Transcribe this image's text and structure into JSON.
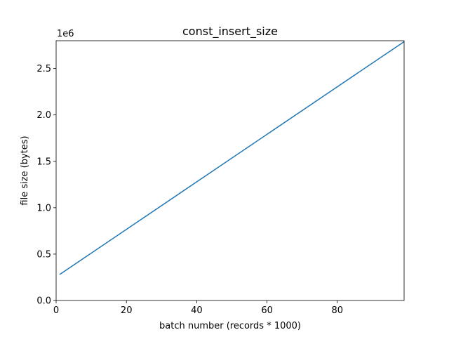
{
  "chart_data": {
    "type": "line",
    "title": "const_insert_size",
    "xlabel": "batch number (records * 1000)",
    "ylabel": "file size (bytes)",
    "y_offset_text": "1e6",
    "xlim": [
      0,
      99
    ],
    "ylim": [
      0,
      2.8
    ],
    "x_ticks": [
      0,
      20,
      40,
      60,
      80
    ],
    "x_tick_labels": [
      "0",
      "20",
      "40",
      "60",
      "80"
    ],
    "y_ticks": [
      0.0,
      0.5,
      1.0,
      1.5,
      2.0,
      2.5
    ],
    "y_tick_labels": [
      "0.0",
      "0.5",
      "1.0",
      "1.5",
      "2.0",
      "2.5"
    ],
    "grid": false,
    "series": [
      {
        "color": "#1f77b4",
        "x": [
          1,
          99
        ],
        "y": [
          0.28,
          2.79
        ]
      }
    ]
  }
}
